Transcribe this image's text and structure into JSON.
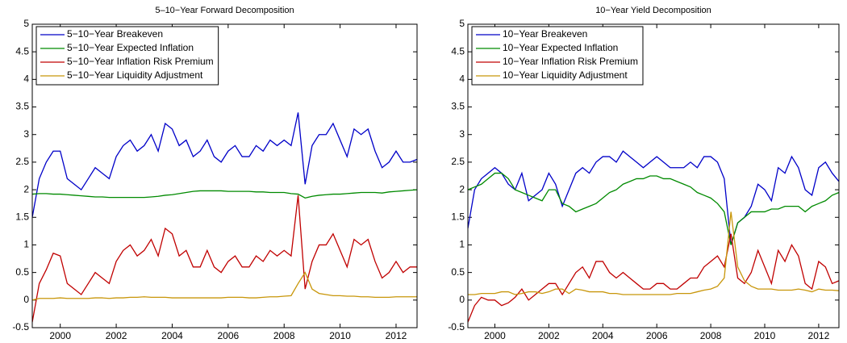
{
  "chart_data": [
    {
      "type": "line",
      "title": "5–10−Year Forward Decomposition",
      "legend": "upper left",
      "xlim": [
        1999,
        2012.75
      ],
      "xticks": [
        2000,
        2002,
        2004,
        2006,
        2008,
        2010,
        2012
      ],
      "ylim": [
        -0.5,
        5
      ],
      "yticks": [
        -0.5,
        0,
        0.5,
        1,
        1.5,
        2,
        2.5,
        3,
        3.5,
        4,
        4.5,
        5
      ],
      "x": [
        1999,
        1999.25,
        1999.5,
        1999.75,
        2000,
        2000.25,
        2000.5,
        2000.75,
        2001,
        2001.25,
        2001.5,
        2001.75,
        2002,
        2002.25,
        2002.5,
        2002.75,
        2003,
        2003.25,
        2003.5,
        2003.75,
        2004,
        2004.25,
        2004.5,
        2004.75,
        2005,
        2005.25,
        2005.5,
        2005.75,
        2006,
        2006.25,
        2006.5,
        2006.75,
        2007,
        2007.25,
        2007.5,
        2007.75,
        2008,
        2008.25,
        2008.5,
        2008.75,
        2009,
        2009.25,
        2009.5,
        2009.75,
        2010,
        2010.25,
        2010.5,
        2010.75,
        2011,
        2011.25,
        2011.5,
        2011.75,
        2012,
        2012.25,
        2012.5,
        2012.75
      ],
      "series": [
        {
          "name": "5−10−Year Breakeven",
          "color": "#0000c8",
          "values": [
            1.5,
            2.2,
            2.5,
            2.7,
            2.7,
            2.2,
            2.1,
            2.0,
            2.2,
            2.4,
            2.3,
            2.2,
            2.6,
            2.8,
            2.9,
            2.7,
            2.8,
            3.0,
            2.7,
            3.2,
            3.1,
            2.8,
            2.9,
            2.6,
            2.7,
            2.9,
            2.6,
            2.5,
            2.7,
            2.8,
            2.6,
            2.6,
            2.8,
            2.7,
            2.9,
            2.8,
            2.9,
            2.8,
            3.4,
            2.1,
            2.8,
            3.0,
            3.0,
            3.2,
            2.9,
            2.6,
            3.1,
            3.0,
            3.1,
            2.7,
            2.4,
            2.5,
            2.7,
            2.5,
            2.5,
            2.55
          ]
        },
        {
          "name": "5−10−Year Expected Inflation",
          "color": "#008a00",
          "values": [
            1.92,
            1.93,
            1.93,
            1.92,
            1.92,
            1.91,
            1.9,
            1.89,
            1.88,
            1.87,
            1.87,
            1.86,
            1.86,
            1.86,
            1.86,
            1.86,
            1.86,
            1.87,
            1.88,
            1.9,
            1.91,
            1.93,
            1.95,
            1.97,
            1.98,
            1.98,
            1.98,
            1.98,
            1.97,
            1.97,
            1.97,
            1.97,
            1.96,
            1.96,
            1.95,
            1.95,
            1.95,
            1.93,
            1.92,
            1.85,
            1.88,
            1.9,
            1.91,
            1.92,
            1.92,
            1.93,
            1.94,
            1.95,
            1.95,
            1.95,
            1.94,
            1.96,
            1.97,
            1.98,
            1.99,
            2.0
          ]
        },
        {
          "name": "5−10−Year Inflation Risk Premium",
          "color": "#c00000",
          "values": [
            -0.4,
            0.3,
            0.55,
            0.85,
            0.8,
            0.3,
            0.2,
            0.1,
            0.3,
            0.5,
            0.4,
            0.3,
            0.7,
            0.9,
            1.0,
            0.8,
            0.9,
            1.1,
            0.8,
            1.3,
            1.2,
            0.8,
            0.9,
            0.6,
            0.6,
            0.9,
            0.6,
            0.5,
            0.7,
            0.8,
            0.6,
            0.6,
            0.8,
            0.7,
            0.9,
            0.8,
            0.9,
            0.8,
            1.9,
            0.2,
            0.7,
            1.0,
            1.0,
            1.2,
            0.9,
            0.6,
            1.1,
            1.0,
            1.1,
            0.7,
            0.4,
            0.5,
            0.7,
            0.5,
            0.6,
            0.6
          ]
        },
        {
          "name": "5−10−Year Liquidity Adjustment",
          "color": "#c8960a",
          "values": [
            0,
            0.03,
            0.03,
            0.03,
            0.04,
            0.03,
            0.03,
            0.03,
            0.03,
            0.04,
            0.04,
            0.03,
            0.04,
            0.04,
            0.05,
            0.05,
            0.06,
            0.05,
            0.05,
            0.05,
            0.04,
            0.04,
            0.04,
            0.04,
            0.04,
            0.04,
            0.04,
            0.04,
            0.05,
            0.05,
            0.05,
            0.04,
            0.04,
            0.05,
            0.06,
            0.06,
            0.07,
            0.08,
            0.3,
            0.5,
            0.2,
            0.12,
            0.1,
            0.08,
            0.08,
            0.07,
            0.07,
            0.06,
            0.06,
            0.05,
            0.05,
            0.05,
            0.06,
            0.06,
            0.06,
            0.06
          ]
        }
      ]
    },
    {
      "type": "line",
      "title": "10−Year Yield Decomposition",
      "legend": "upper left",
      "xlim": [
        1999,
        2012.75
      ],
      "xticks": [
        2000,
        2002,
        2004,
        2006,
        2008,
        2010,
        2012
      ],
      "ylim": [
        -0.5,
        5
      ],
      "yticks": [
        -0.5,
        0,
        0.5,
        1,
        1.5,
        2,
        2.5,
        3,
        3.5,
        4,
        4.5,
        5
      ],
      "x": [
        1999,
        1999.25,
        1999.5,
        1999.75,
        2000,
        2000.25,
        2000.5,
        2000.75,
        2001,
        2001.25,
        2001.5,
        2001.75,
        2002,
        2002.25,
        2002.5,
        2002.75,
        2003,
        2003.25,
        2003.5,
        2003.75,
        2004,
        2004.25,
        2004.5,
        2004.75,
        2005,
        2005.25,
        2005.5,
        2005.75,
        2006,
        2006.25,
        2006.5,
        2006.75,
        2007,
        2007.25,
        2007.5,
        2007.75,
        2008,
        2008.25,
        2008.5,
        2008.75,
        2009,
        2009.25,
        2009.5,
        2009.75,
        2010,
        2010.25,
        2010.5,
        2010.75,
        2011,
        2011.25,
        2011.5,
        2011.75,
        2012,
        2012.25,
        2012.5,
        2012.75
      ],
      "series": [
        {
          "name": "10−Year Breakeven",
          "color": "#0000c8",
          "values": [
            1.3,
            2.0,
            2.2,
            2.3,
            2.4,
            2.3,
            2.1,
            2.0,
            2.3,
            1.8,
            1.9,
            2.0,
            2.3,
            2.1,
            1.7,
            2.0,
            2.3,
            2.4,
            2.3,
            2.5,
            2.6,
            2.6,
            2.5,
            2.7,
            2.6,
            2.5,
            2.4,
            2.5,
            2.6,
            2.5,
            2.4,
            2.4,
            2.4,
            2.5,
            2.4,
            2.6,
            2.6,
            2.5,
            2.2,
            1.0,
            1.4,
            1.5,
            1.7,
            2.1,
            2.0,
            1.8,
            2.4,
            2.3,
            2.6,
            2.4,
            2.0,
            1.9,
            2.4,
            2.5,
            2.3,
            2.15
          ]
        },
        {
          "name": "10−Year Expected Inflation",
          "color": "#008a00",
          "values": [
            2.0,
            2.05,
            2.1,
            2.2,
            2.3,
            2.3,
            2.2,
            2.0,
            1.95,
            1.9,
            1.85,
            1.8,
            2.0,
            2.0,
            1.75,
            1.7,
            1.6,
            1.65,
            1.7,
            1.75,
            1.85,
            1.95,
            2.0,
            2.1,
            2.15,
            2.2,
            2.2,
            2.25,
            2.25,
            2.2,
            2.2,
            2.15,
            2.1,
            2.05,
            1.95,
            1.9,
            1.85,
            1.75,
            1.6,
            1.0,
            1.4,
            1.5,
            1.6,
            1.6,
            1.6,
            1.65,
            1.65,
            1.7,
            1.7,
            1.7,
            1.6,
            1.7,
            1.75,
            1.8,
            1.9,
            1.95
          ]
        },
        {
          "name": "10−Year Inflation Risk Premium",
          "color": "#c00000",
          "values": [
            -0.4,
            -0.1,
            0.05,
            0.0,
            0.0,
            -0.1,
            -0.05,
            0.05,
            0.2,
            0.0,
            0.1,
            0.2,
            0.3,
            0.3,
            0.1,
            0.3,
            0.5,
            0.6,
            0.4,
            0.7,
            0.7,
            0.5,
            0.4,
            0.5,
            0.4,
            0.3,
            0.2,
            0.2,
            0.3,
            0.3,
            0.2,
            0.2,
            0.3,
            0.4,
            0.4,
            0.6,
            0.7,
            0.8,
            0.6,
            1.2,
            0.4,
            0.3,
            0.5,
            0.9,
            0.6,
            0.3,
            0.9,
            0.7,
            1.0,
            0.8,
            0.3,
            0.2,
            0.7,
            0.6,
            0.3,
            0.35
          ]
        },
        {
          "name": "10−Year Liquidity Adjustment",
          "color": "#c8960a",
          "values": [
            0.1,
            0.1,
            0.12,
            0.12,
            0.12,
            0.15,
            0.15,
            0.1,
            0.12,
            0.15,
            0.15,
            0.12,
            0.15,
            0.2,
            0.2,
            0.12,
            0.2,
            0.18,
            0.15,
            0.15,
            0.15,
            0.12,
            0.12,
            0.1,
            0.1,
            0.1,
            0.1,
            0.1,
            0.1,
            0.1,
            0.1,
            0.12,
            0.12,
            0.12,
            0.15,
            0.18,
            0.2,
            0.25,
            0.4,
            1.6,
            0.6,
            0.35,
            0.25,
            0.2,
            0.2,
            0.2,
            0.18,
            0.18,
            0.18,
            0.2,
            0.18,
            0.15,
            0.2,
            0.18,
            0.18,
            0.17
          ]
        }
      ]
    }
  ]
}
